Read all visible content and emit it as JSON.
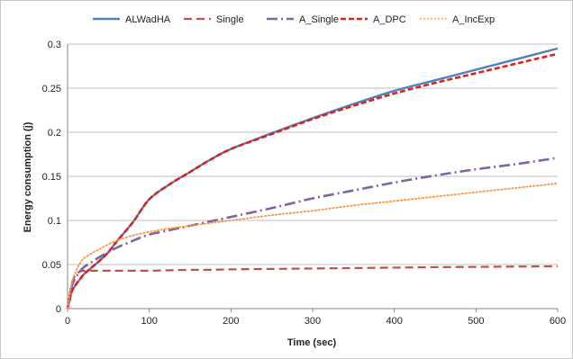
{
  "chart_data": {
    "type": "line",
    "title": "",
    "xlabel": "Time (sec)",
    "ylabel": "Energy consumption (j)",
    "xlim": [
      0,
      600
    ],
    "ylim": [
      0,
      0.3
    ],
    "x_ticks": [
      "0",
      "100",
      "200",
      "300",
      "400",
      "500",
      "600"
    ],
    "y_ticks": [
      "0",
      "0.05",
      "0.1",
      "0.15",
      "0.2",
      "0.25",
      "0.3"
    ],
    "grid": "horizontal",
    "legend_position": "top",
    "x": [
      0,
      5,
      10,
      15,
      20,
      30,
      40,
      50,
      60,
      80,
      100,
      125,
      150,
      175,
      200,
      250,
      300,
      350,
      400,
      450,
      500,
      550,
      600
    ],
    "series": [
      {
        "name": "ALWadHA",
        "color": "#4f81bd",
        "dash": "solid",
        "values": [
          0,
          0.019,
          0.027,
          0.033,
          0.039,
          0.047,
          0.055,
          0.064,
          0.076,
          0.098,
          0.124,
          0.141,
          0.155,
          0.169,
          0.181,
          0.199,
          0.216,
          0.232,
          0.247,
          0.259,
          0.271,
          0.283,
          0.295
        ]
      },
      {
        "name": "Single",
        "color": "#c0504d",
        "dash": "dashed",
        "values": [
          0,
          0.028,
          0.038,
          0.042,
          0.043,
          0.043,
          0.043,
          0.043,
          0.043,
          0.043,
          0.043,
          0.0435,
          0.044,
          0.044,
          0.0445,
          0.045,
          0.0455,
          0.046,
          0.0465,
          0.047,
          0.0473,
          0.0477,
          0.048
        ]
      },
      {
        "name": "A_Single",
        "color": "#8064a2",
        "dash": "dash-dot",
        "values": [
          0,
          0.025,
          0.035,
          0.042,
          0.047,
          0.053,
          0.059,
          0.064,
          0.069,
          0.077,
          0.084,
          0.089,
          0.094,
          0.099,
          0.104,
          0.114,
          0.125,
          0.134,
          0.143,
          0.151,
          0.158,
          0.164,
          0.171
        ]
      },
      {
        "name": "A_DPC",
        "color": "#e0201a",
        "dash": "dashed",
        "values": [
          0,
          0.019,
          0.027,
          0.033,
          0.039,
          0.047,
          0.055,
          0.064,
          0.076,
          0.098,
          0.124,
          0.141,
          0.155,
          0.169,
          0.181,
          0.198,
          0.215,
          0.23,
          0.244,
          0.256,
          0.267,
          0.278,
          0.289
        ]
      },
      {
        "name": "A_IncExp",
        "color": "#f79646",
        "dash": "dotted",
        "values": [
          0,
          0.028,
          0.042,
          0.051,
          0.057,
          0.063,
          0.068,
          0.073,
          0.077,
          0.083,
          0.087,
          0.091,
          0.094,
          0.097,
          0.1,
          0.106,
          0.111,
          0.117,
          0.122,
          0.127,
          0.132,
          0.137,
          0.142
        ]
      }
    ]
  }
}
